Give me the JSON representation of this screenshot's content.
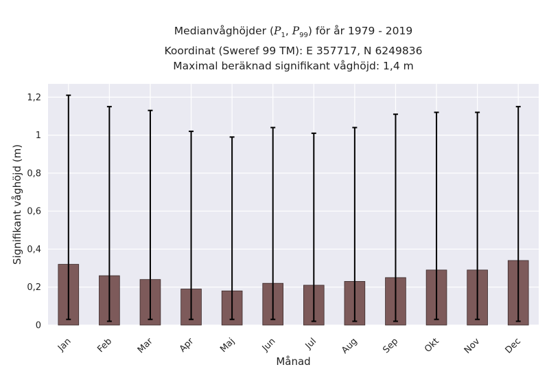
{
  "title": {
    "line1_prefix": "Medianvåghöjder (",
    "line1_p1_sym": "P",
    "line1_p1_sub": "1",
    "line1_sep": ", ",
    "line1_p99_sym": "P",
    "line1_p99_sub": "99",
    "line1_suffix": ") för år 1979 - 2019",
    "line2": "Koordinat (Sweref 99 TM): E 357717, N 6249836",
    "line3": "Maximal beräknad signifikant våghöjd: 1,4 m"
  },
  "colors": {
    "plot_background": "#eaeaf2",
    "grid": "#ffffff",
    "bar_fill": "#7d5a5a",
    "bar_edge": "#3a2a2a",
    "error_bar": "#000000",
    "text": "#222222"
  },
  "chart_data": {
    "type": "bar",
    "title": "Medianvåghöjder (P1, P99) för år 1979 - 2019",
    "xlabel": "Månad",
    "ylabel": "Signifikant våghöjd (m)",
    "ylim": [
      0,
      1.27
    ],
    "yticks": [
      0,
      0.2,
      0.4,
      0.6,
      0.8,
      1,
      1.2
    ],
    "ytick_labels": [
      "0",
      "0,2",
      "0,4",
      "0,6",
      "0,8",
      "1",
      "1,2"
    ],
    "grid": true,
    "categories": [
      "Jan",
      "Feb",
      "Mar",
      "Apr",
      "Maj",
      "Jun",
      "Jul",
      "Aug",
      "Sep",
      "Okt",
      "Nov",
      "Dec"
    ],
    "values": [
      0.32,
      0.26,
      0.24,
      0.19,
      0.18,
      0.22,
      0.21,
      0.23,
      0.25,
      0.29,
      0.29,
      0.34
    ],
    "p1": [
      0.03,
      0.02,
      0.03,
      0.03,
      0.03,
      0.03,
      0.02,
      0.02,
      0.02,
      0.03,
      0.03,
      0.02
    ],
    "p99": [
      1.21,
      1.15,
      1.13,
      1.02,
      0.99,
      1.04,
      1.01,
      1.04,
      1.11,
      1.12,
      1.12,
      1.15
    ]
  }
}
